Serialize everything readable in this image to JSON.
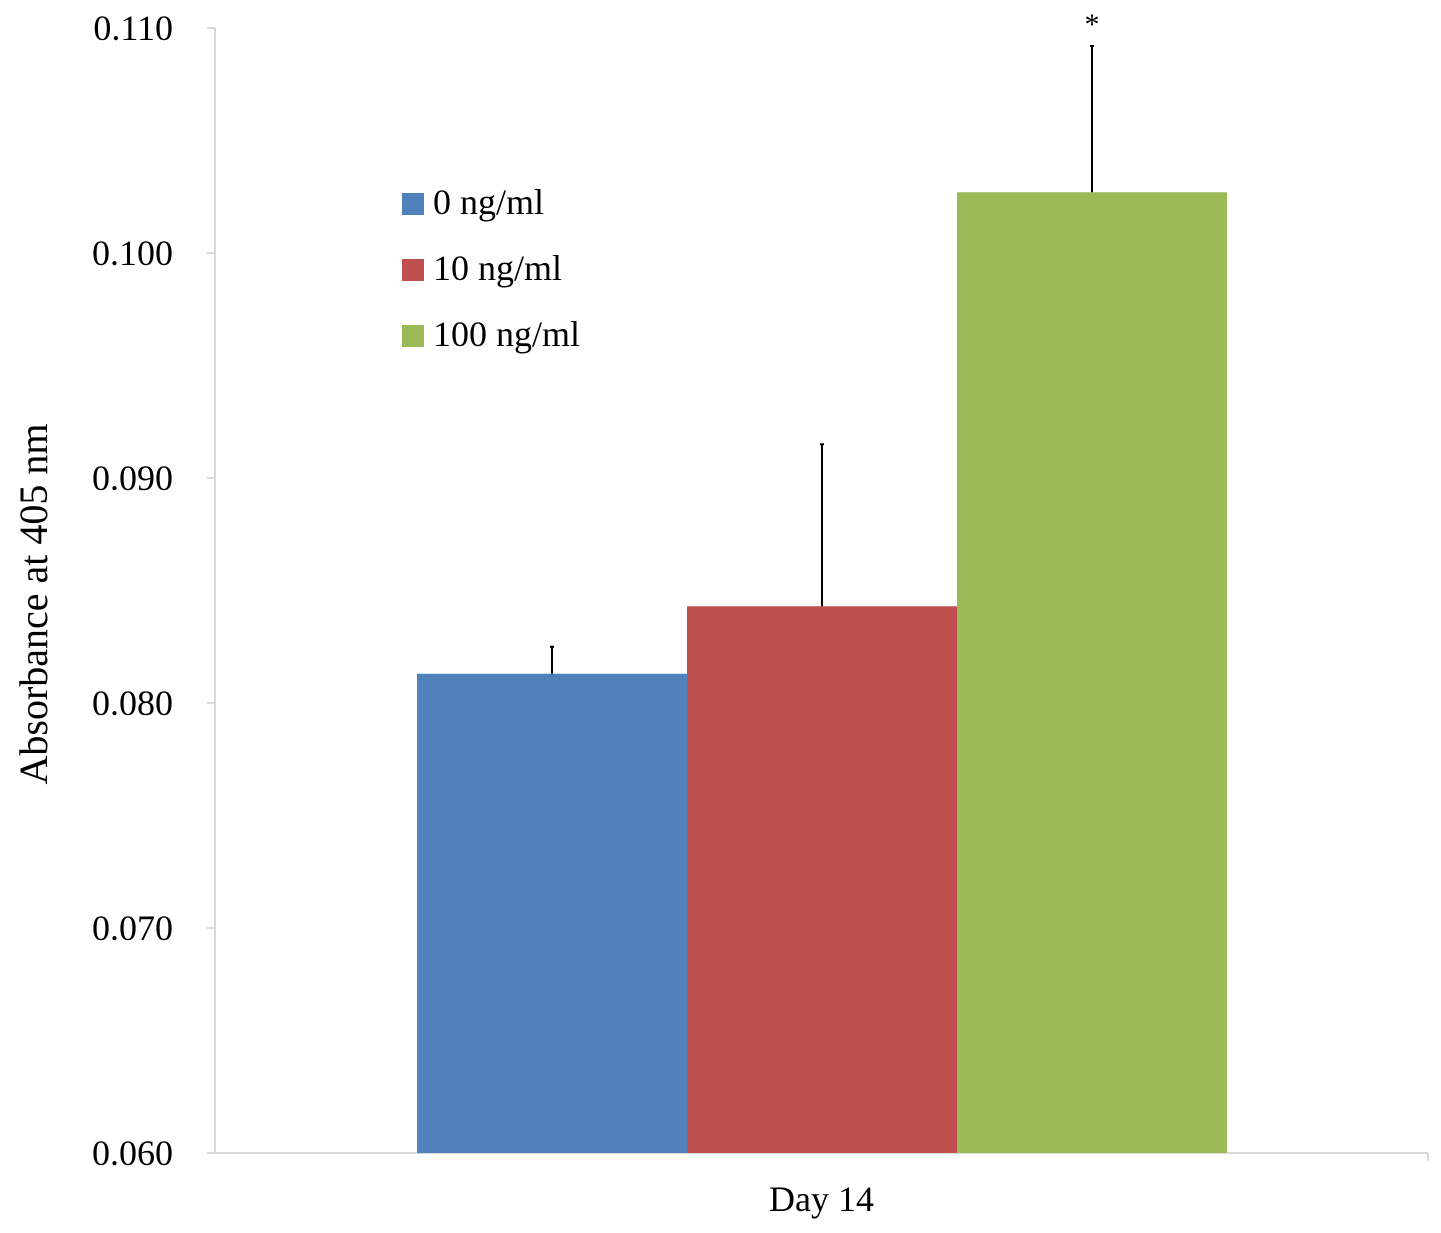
{
  "chart_data": {
    "type": "bar",
    "title": "",
    "xlabel": "",
    "ylabel": "Absorbance at 405 nm",
    "categories": [
      "Day 14"
    ],
    "ylim": [
      0.06,
      0.11
    ],
    "yticks": [
      0.06,
      0.07,
      0.08,
      0.09,
      0.1,
      0.11
    ],
    "ytick_labels": [
      "0.060",
      "0.070",
      "0.080",
      "0.090",
      "0.100",
      "0.110"
    ],
    "series": [
      {
        "name": "0 ng/ml",
        "color": "#4f81bd",
        "values": [
          0.0813
        ],
        "errors": [
          0.0012
        ]
      },
      {
        "name": "10 ng/ml",
        "color": "#c0504d",
        "values": [
          0.0843
        ],
        "errors": [
          0.0072
        ]
      },
      {
        "name": "100 ng/ml",
        "color": "#9bbb59",
        "values": [
          0.1027
        ],
        "errors": [
          0.0065
        ],
        "annotation": "*"
      }
    ],
    "legend_position": "upper-left inside plot",
    "grid": false
  }
}
